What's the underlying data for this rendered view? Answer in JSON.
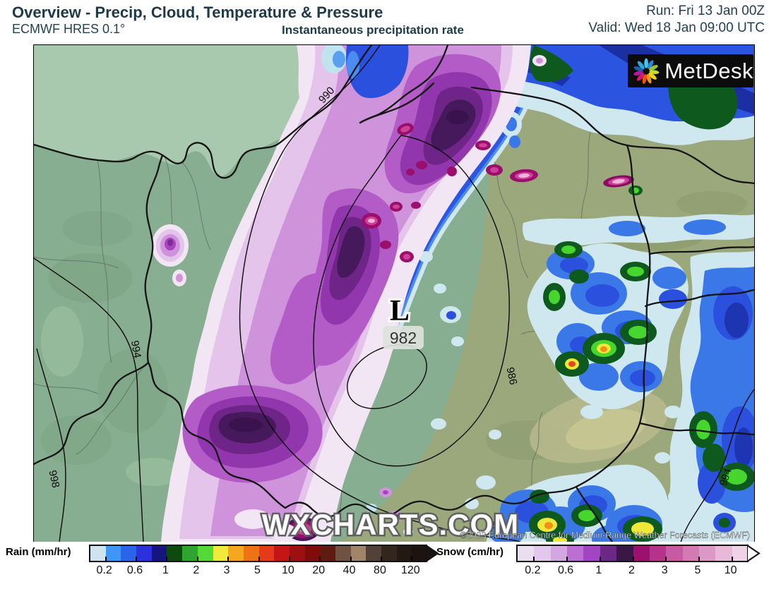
{
  "header": {
    "title": "Overview - Precip, Cloud, Temperature & Pressure",
    "model": "ECMWF HRES 0.1°",
    "product": "Instantaneous precipitation rate",
    "run": "Run: Fri 13 Jan 00Z",
    "valid": "Valid: Wed 18 Jan 09:00 UTC"
  },
  "logo": {
    "text": "MetDesk"
  },
  "map": {
    "low": {
      "symbol": "L",
      "value": "982"
    },
    "contour_labels": [
      "990",
      "990",
      "994",
      "994",
      "998",
      "986"
    ],
    "watermark": "WXCHARTS.COM",
    "copyright": "©2023 European Centre for Medium-Range Weather Forecasts (ECMWF)"
  },
  "legend": {
    "rain": {
      "label": "Rain (mm/hr)",
      "ticks": [
        "0.2",
        "0.6",
        "1",
        "2",
        "3",
        "5",
        "10",
        "20",
        "40",
        "80",
        "120"
      ],
      "colors": [
        "#cfe4f0",
        "#3f96f5",
        "#2b64ea",
        "#2b32dd",
        "#15157e",
        "#0e4a10",
        "#31a331",
        "#55d936",
        "#f2ea3a",
        "#f5a81f",
        "#ef7214",
        "#e53a1c",
        "#c41616",
        "#9e0f0f",
        "#800b0b",
        "#5e1c10",
        "#6e5242",
        "#a28468",
        "#514136",
        "#33261d",
        "#231813",
        "#1c1410"
      ],
      "arrow_color": "#1c1410"
    },
    "snow": {
      "label": "Snow (cm/hr)",
      "ticks": [
        "0.2",
        "0.6",
        "1",
        "2",
        "3",
        "5",
        "10"
      ],
      "colors": [
        "#eadef0",
        "#e2c8ec",
        "#d4a6e2",
        "#bb6fd2",
        "#a245c2",
        "#6b2887",
        "#3a1747",
        "#9c1070",
        "#b5338a",
        "#c75ba3",
        "#d17bb2",
        "#dd99c6",
        "#e8b8d8",
        "#f0d2e6"
      ],
      "arrow_color": "#ffffff"
    }
  }
}
